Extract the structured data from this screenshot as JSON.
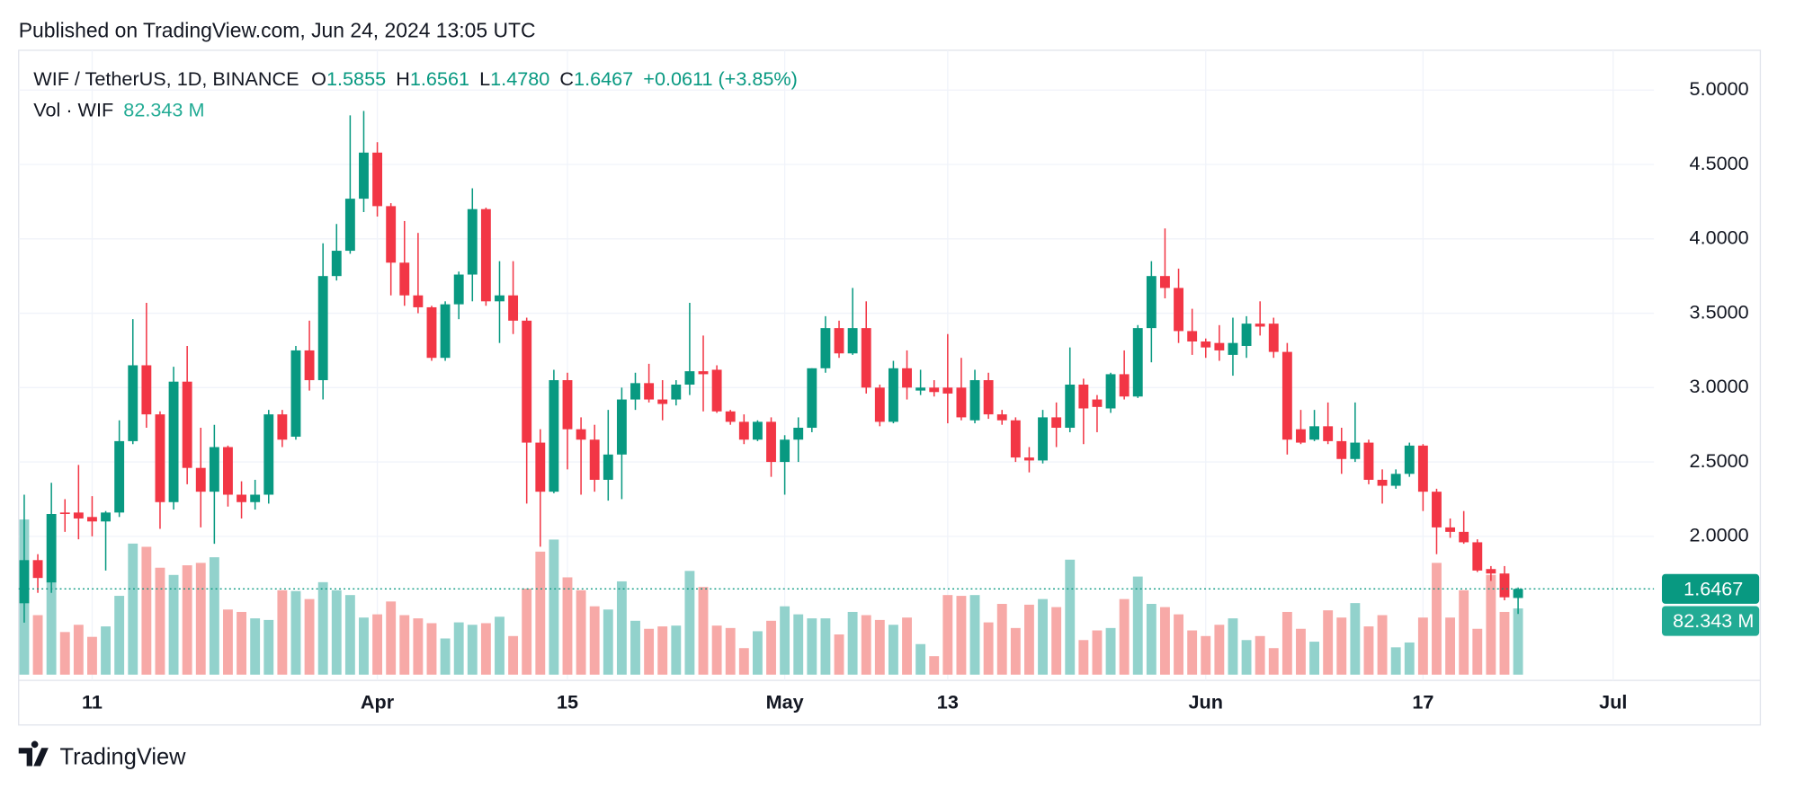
{
  "header": {
    "published": "Published on TradingView.com, Jun 24, 2024 13:05 UTC"
  },
  "footer": {
    "brand": "TradingView"
  },
  "chart_data": {
    "type": "candlestick",
    "legend": {
      "symbol": "WIF / TetherUS, 1D, BINANCE",
      "open_label": "O",
      "open": "1.5855",
      "high_label": "H",
      "high": "1.6561",
      "low_label": "L",
      "low": "1.4780",
      "close_label": "C",
      "close": "1.6467",
      "change": "+0.0611 (+3.85%)"
    },
    "up_color": "#089981",
    "down_color": "#f23645",
    "x": [
      "Mar 6",
      "Mar 7",
      "Mar 8",
      "Mar 9",
      "Mar 10",
      "Mar 11",
      "Mar 12",
      "Mar 13",
      "Mar 14",
      "Mar 15",
      "Mar 16",
      "Mar 17",
      "Mar 18",
      "Mar 19",
      "Mar 20",
      "Mar 21",
      "Mar 22",
      "Mar 23",
      "Mar 24",
      "Mar 25",
      "Mar 26",
      "Mar 27",
      "Mar 28",
      "Mar 29",
      "Mar 30",
      "Mar 31",
      "Apr 1",
      "Apr 2",
      "Apr 3",
      "Apr 4",
      "Apr 5",
      "Apr 6",
      "Apr 7",
      "Apr 8",
      "Apr 9",
      "Apr 10",
      "Apr 11",
      "Apr 12",
      "Apr 13",
      "Apr 14",
      "Apr 15",
      "Apr 16",
      "Apr 17",
      "Apr 18",
      "Apr 19",
      "Apr 20",
      "Apr 21",
      "Apr 22",
      "Apr 23",
      "Apr 24",
      "Apr 25",
      "Apr 26",
      "Apr 27",
      "Apr 28",
      "Apr 29",
      "Apr 30",
      "May 1",
      "May 2",
      "May 3",
      "May 4",
      "May 5",
      "May 6",
      "May 7",
      "May 8",
      "May 9",
      "May 10",
      "May 11",
      "May 12",
      "May 13",
      "May 14",
      "May 15",
      "May 16",
      "May 17",
      "May 18",
      "May 19",
      "May 20",
      "May 21",
      "May 22",
      "May 23",
      "May 24",
      "May 25",
      "May 26",
      "May 27",
      "May 28",
      "May 29",
      "May 30",
      "May 31",
      "Jun 1",
      "Jun 2",
      "Jun 3",
      "Jun 4",
      "Jun 5",
      "Jun 6",
      "Jun 7",
      "Jun 8",
      "Jun 9",
      "Jun 10",
      "Jun 11",
      "Jun 12",
      "Jun 13",
      "Jun 14",
      "Jun 15",
      "Jun 16",
      "Jun 17",
      "Jun 18",
      "Jun 19",
      "Jun 20",
      "Jun 21",
      "Jun 22",
      "Jun 23",
      "Jun 24"
    ],
    "open": [
      1.55,
      1.84,
      1.69,
      2.16,
      2.16,
      2.13,
      2.1,
      2.16,
      2.64,
      3.15,
      2.82,
      2.23,
      3.04,
      2.46,
      2.3,
      2.6,
      2.28,
      2.23,
      2.28,
      2.82,
      2.67,
      3.25,
      3.05,
      3.75,
      3.92,
      4.27,
      4.58,
      4.22,
      3.84,
      3.62,
      3.54,
      3.2,
      3.56,
      3.76,
      4.2,
      3.58,
      3.62,
      3.45,
      2.63,
      2.3,
      3.05,
      2.72,
      2.65,
      2.38,
      2.55,
      2.92,
      3.03,
      2.92,
      2.92,
      3.02,
      3.11,
      3.12,
      2.84,
      2.77,
      2.65,
      2.77,
      2.5,
      2.65,
      2.73,
      3.13,
      3.4,
      3.23,
      3.4,
      3.0,
      2.77,
      3.13,
      2.98,
      3.0,
      3.0,
      3.0,
      2.78,
      3.05,
      2.82,
      2.78,
      2.53,
      2.51,
      2.8,
      2.73,
      3.02,
      2.92,
      2.86,
      3.09,
      2.94,
      3.4,
      3.75,
      3.67,
      3.38,
      3.31,
      3.3,
      3.22,
      3.28,
      3.43,
      3.43,
      3.24,
      2.72,
      2.65,
      2.74,
      2.64,
      2.52,
      2.63,
      2.38,
      2.34,
      2.42,
      2.61,
      2.3,
      2.06,
      2.03,
      1.96,
      1.78,
      1.75,
      1.5855
    ],
    "high": [
      2.28,
      1.88,
      2.36,
      2.25,
      2.48,
      2.27,
      2.17,
      2.78,
      3.46,
      3.57,
      2.84,
      3.14,
      3.28,
      2.73,
      2.75,
      2.61,
      2.37,
      2.38,
      2.85,
      2.85,
      3.28,
      3.45,
      3.97,
      4.1,
      4.83,
      4.86,
      4.65,
      4.24,
      4.12,
      4.04,
      3.55,
      3.58,
      3.78,
      4.34,
      4.21,
      3.85,
      3.85,
      3.47,
      2.72,
      3.12,
      3.1,
      2.8,
      2.75,
      2.85,
      3.0,
      3.1,
      3.16,
      3.05,
      3.05,
      3.57,
      3.35,
      3.15,
      2.85,
      2.82,
      2.78,
      2.8,
      2.68,
      2.8,
      3.13,
      3.48,
      3.45,
      3.67,
      3.58,
      3.02,
      3.18,
      3.25,
      3.12,
      3.05,
      3.36,
      3.2,
      3.12,
      3.1,
      2.85,
      2.8,
      2.6,
      2.85,
      2.9,
      3.27,
      3.06,
      2.95,
      3.1,
      3.25,
      3.42,
      3.85,
      4.07,
      3.8,
      3.53,
      3.33,
      3.42,
      3.47,
      3.48,
      3.58,
      3.47,
      3.3,
      2.85,
      2.85,
      2.9,
      2.73,
      2.9,
      2.65,
      2.45,
      2.45,
      2.63,
      2.62,
      2.32,
      2.12,
      2.17,
      1.98,
      1.8,
      1.8,
      1.6561
    ],
    "low": [
      1.42,
      1.62,
      1.62,
      2.03,
      1.98,
      2.0,
      1.77,
      2.13,
      2.62,
      2.73,
      2.05,
      2.18,
      2.35,
      2.06,
      1.95,
      2.2,
      2.12,
      2.18,
      2.22,
      2.6,
      2.65,
      2.98,
      2.92,
      3.72,
      3.9,
      4.18,
      4.15,
      3.62,
      3.55,
      3.5,
      3.18,
      3.18,
      3.46,
      3.58,
      3.55,
      3.3,
      3.36,
      2.22,
      1.93,
      2.29,
      2.45,
      2.28,
      2.3,
      2.24,
      2.25,
      2.85,
      2.9,
      2.78,
      2.88,
      2.95,
      2.84,
      2.83,
      2.75,
      2.62,
      2.64,
      2.4,
      2.28,
      2.5,
      2.7,
      3.1,
      3.2,
      3.22,
      2.96,
      2.74,
      2.76,
      2.92,
      2.95,
      2.94,
      2.76,
      2.78,
      2.76,
      2.79,
      2.75,
      2.5,
      2.43,
      2.49,
      2.6,
      2.7,
      2.62,
      2.7,
      2.83,
      2.92,
      2.93,
      3.17,
      3.6,
      3.3,
      3.22,
      3.2,
      3.18,
      3.08,
      3.2,
      3.35,
      3.2,
      2.55,
      2.62,
      2.64,
      2.62,
      2.42,
      2.5,
      2.35,
      2.22,
      2.32,
      2.4,
      2.17,
      1.88,
      1.99,
      1.95,
      1.76,
      1.7,
      1.57,
      1.478
    ],
    "close": [
      1.84,
      1.72,
      2.15,
      2.15,
      2.12,
      2.1,
      2.16,
      2.64,
      3.15,
      2.82,
      2.23,
      3.04,
      2.46,
      2.3,
      2.6,
      2.28,
      2.23,
      2.28,
      2.82,
      2.65,
      3.25,
      3.05,
      3.75,
      3.92,
      4.27,
      4.58,
      4.22,
      3.84,
      3.62,
      3.54,
      3.2,
      3.56,
      3.76,
      4.2,
      3.58,
      3.62,
      3.45,
      2.63,
      2.3,
      3.05,
      2.72,
      2.65,
      2.38,
      2.55,
      2.92,
      3.03,
      2.92,
      2.89,
      3.02,
      3.11,
      3.09,
      2.84,
      2.77,
      2.65,
      2.77,
      2.5,
      2.65,
      2.73,
      3.13,
      3.4,
      3.23,
      3.4,
      3.0,
      2.77,
      3.13,
      3.0,
      3.0,
      2.97,
      2.96,
      2.8,
      3.05,
      2.82,
      2.78,
      2.53,
      2.51,
      2.8,
      2.73,
      3.02,
      2.86,
      2.87,
      3.09,
      2.94,
      3.4,
      3.75,
      3.67,
      3.38,
      3.31,
      3.27,
      3.25,
      3.3,
      3.43,
      3.41,
      3.24,
      2.65,
      2.63,
      2.74,
      2.64,
      2.52,
      2.63,
      2.38,
      2.34,
      2.42,
      2.61,
      2.3,
      2.06,
      2.03,
      1.96,
      1.77,
      1.75,
      1.59,
      1.6467
    ],
    "volume": {
      "name": "Vol · WIF",
      "axis": "y2",
      "up_color": "#92d2cc",
      "down_color": "#f7a9a7",
      "values": [
        193,
        74,
        115,
        53,
        62,
        47,
        60,
        98,
        163,
        159,
        133,
        124,
        136,
        139,
        146,
        81,
        78,
        70,
        68,
        105,
        104,
        94,
        115,
        105,
        99,
        71,
        75,
        91,
        74,
        70,
        64,
        45,
        65,
        62,
        64,
        72,
        48,
        107,
        153,
        168,
        121,
        105,
        85,
        81,
        116,
        67,
        57,
        60,
        61,
        129,
        109,
        61,
        58,
        33,
        54,
        67,
        85,
        75,
        70,
        70,
        50,
        78,
        74,
        68,
        62,
        71,
        38,
        23,
        99,
        98,
        99,
        65,
        88,
        58,
        87,
        94,
        84,
        143,
        43,
        55,
        58,
        94,
        122,
        88,
        84,
        75,
        55,
        48,
        62,
        70,
        43,
        48,
        33,
        78,
        57,
        41,
        80,
        71,
        89,
        60,
        74,
        34,
        40,
        71,
        139,
        71,
        105,
        57,
        124,
        78,
        82.343
      ],
      "value_labels": [
        null,
        null,
        null,
        null,
        null,
        null,
        null,
        null,
        null,
        null,
        null,
        null,
        null,
        null,
        null,
        null,
        null,
        null,
        null,
        null,
        null,
        null,
        null,
        null,
        null,
        null,
        null,
        null,
        null,
        null,
        null,
        null,
        null,
        null,
        null,
        null,
        null,
        null,
        null,
        null,
        null,
        null,
        null,
        null,
        null,
        null,
        null,
        null,
        null,
        null,
        null,
        null,
        null,
        null,
        null,
        null,
        null,
        null,
        null,
        null,
        null,
        null,
        null,
        null,
        null,
        null,
        null,
        null,
        null,
        null,
        null,
        null,
        null,
        null,
        null,
        null,
        null,
        null,
        null,
        null,
        null,
        null,
        null,
        null,
        null,
        null,
        null,
        null,
        null,
        null,
        null,
        null,
        null,
        null,
        null,
        null,
        null,
        null,
        null,
        null,
        null,
        null,
        null,
        null,
        null,
        null,
        null,
        null,
        null,
        null,
        "82.343 M"
      ]
    },
    "xlim": [
      "Mar 5",
      "Jul 4"
    ],
    "xticks": [
      {
        "value": "Mar 11",
        "label": "11"
      },
      {
        "value": "Apr 1",
        "label": "Apr"
      },
      {
        "value": "Apr 15",
        "label": "15"
      },
      {
        "value": "May 1",
        "label": "May"
      },
      {
        "value": "May 13",
        "label": "13"
      },
      {
        "value": "Jun 1",
        "label": "Jun"
      },
      {
        "value": "Jun 17",
        "label": "17"
      },
      {
        "value": "Jul 1",
        "label": "Jul"
      }
    ],
    "ylim": [
      1.07,
      5.26
    ],
    "yticks": [
      {
        "value": 2,
        "label": "2.0000"
      },
      {
        "value": 2.5,
        "label": "2.5000"
      },
      {
        "value": 3,
        "label": "3.0000"
      },
      {
        "value": 3.5,
        "label": "3.5000"
      },
      {
        "value": 4,
        "label": "4.0000"
      },
      {
        "value": 4.5,
        "label": "4.5000"
      },
      {
        "value": 5,
        "label": "5.0000"
      }
    ],
    "y2lim": [
      0,
      775
    ],
    "grid": true
  }
}
